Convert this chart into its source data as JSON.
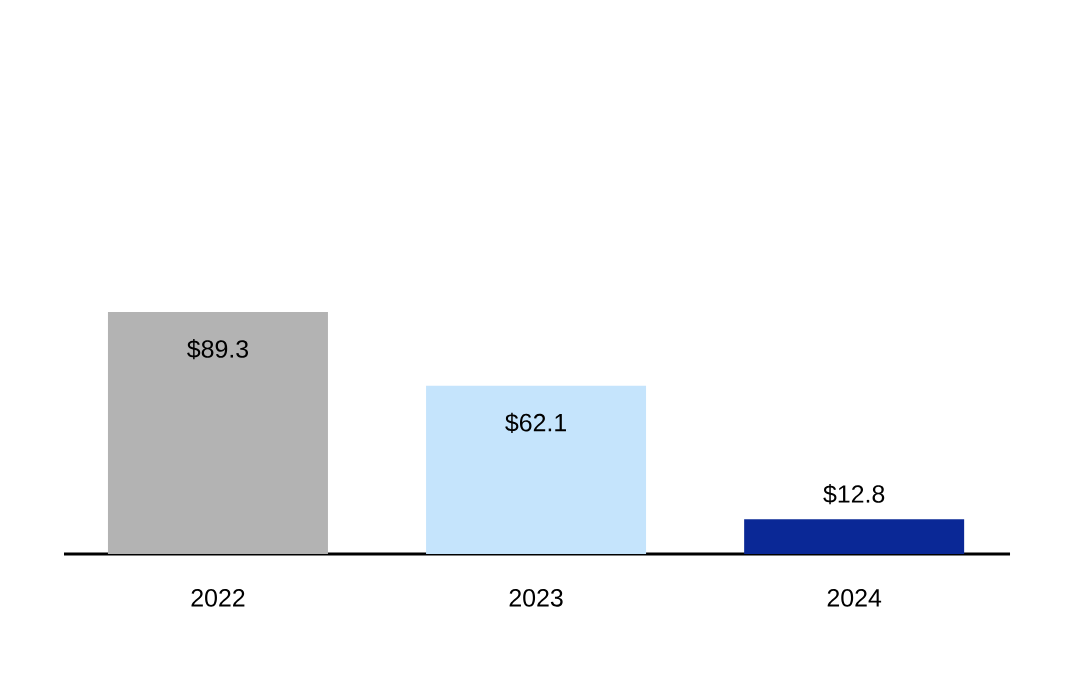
{
  "chart_data": {
    "type": "bar",
    "categories": [
      "2022",
      "2023",
      "2024"
    ],
    "values": [
      89.3,
      62.1,
      12.8
    ],
    "colors": [
      "#b3b3b3",
      "#c5e4fc",
      "#0a2896"
    ],
    "value_labels": [
      "$89.3",
      "$62.1",
      "$12.8"
    ]
  }
}
